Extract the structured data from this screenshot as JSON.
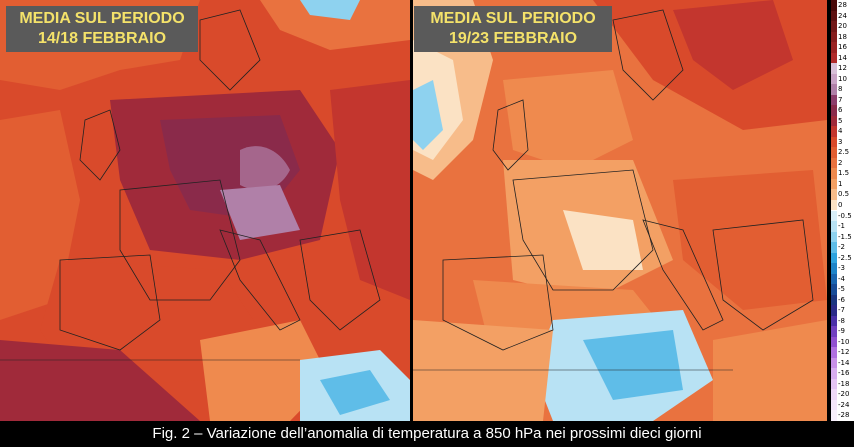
{
  "panels": [
    {
      "title_line1": "MEDIA SUL PERIODO",
      "title_line2": "14/18 FEBBRAIO"
    },
    {
      "title_line1": "MEDIA SUL PERIODO",
      "title_line2": "19/23 FEBBRAIO"
    }
  ],
  "legend": {
    "items": [
      {
        "label": "28",
        "color": "#4a0a0a"
      },
      {
        "label": "24",
        "color": "#5e1212"
      },
      {
        "label": "20",
        "color": "#721818"
      },
      {
        "label": "18",
        "color": "#861d1d"
      },
      {
        "label": "16",
        "color": "#9a2222"
      },
      {
        "label": "14",
        "color": "#b02a2a"
      },
      {
        "label": "12",
        "color": "#d8c0d8"
      },
      {
        "label": "10",
        "color": "#c9a3c5"
      },
      {
        "label": "8",
        "color": "#b080a8"
      },
      {
        "label": "7",
        "color": "#8c3c6a"
      },
      {
        "label": "6",
        "color": "#8a2a4a"
      },
      {
        "label": "5",
        "color": "#a02a3a"
      },
      {
        "label": "4",
        "color": "#c3362e"
      },
      {
        "label": "3",
        "color": "#d94a2b"
      },
      {
        "label": "2.5",
        "color": "#e25e32"
      },
      {
        "label": "2",
        "color": "#e9723f"
      },
      {
        "label": "1.5",
        "color": "#ef8a4e"
      },
      {
        "label": "1",
        "color": "#f3a064"
      },
      {
        "label": "0.5",
        "color": "#f7bc8a"
      },
      {
        "label": "0",
        "color": "#fbe2c4"
      },
      {
        "label": "-0.5",
        "color": "#d8eef8"
      },
      {
        "label": "-1",
        "color": "#b8e2f4"
      },
      {
        "label": "-1.5",
        "color": "#8ed2ef"
      },
      {
        "label": "-2",
        "color": "#5fbde8"
      },
      {
        "label": "-2.5",
        "color": "#2fa3de"
      },
      {
        "label": "-3",
        "color": "#1e84c8"
      },
      {
        "label": "-4",
        "color": "#1a66b0"
      },
      {
        "label": "-5",
        "color": "#184c98"
      },
      {
        "label": "-6",
        "color": "#1a3580"
      },
      {
        "label": "-7",
        "color": "#2a2a88"
      },
      {
        "label": "-8",
        "color": "#4a30a8"
      },
      {
        "label": "-9",
        "color": "#7040c0"
      },
      {
        "label": "-10",
        "color": "#9050d0"
      },
      {
        "label": "-12",
        "color": "#b070e0"
      },
      {
        "label": "-14",
        "color": "#c890e8"
      },
      {
        "label": "-16",
        "color": "#d8aef0"
      },
      {
        "label": "-18",
        "color": "#e4c4f4"
      },
      {
        "label": "-20",
        "color": "#eed8f8"
      },
      {
        "label": "-24",
        "color": "#f4e6fa"
      },
      {
        "label": "-28",
        "color": "#f8f0fc"
      }
    ]
  },
  "caption": "Fig. 2 – Variazione dell’anomalia di temperatura a 850 hPa nei prossimi dieci giorni"
}
